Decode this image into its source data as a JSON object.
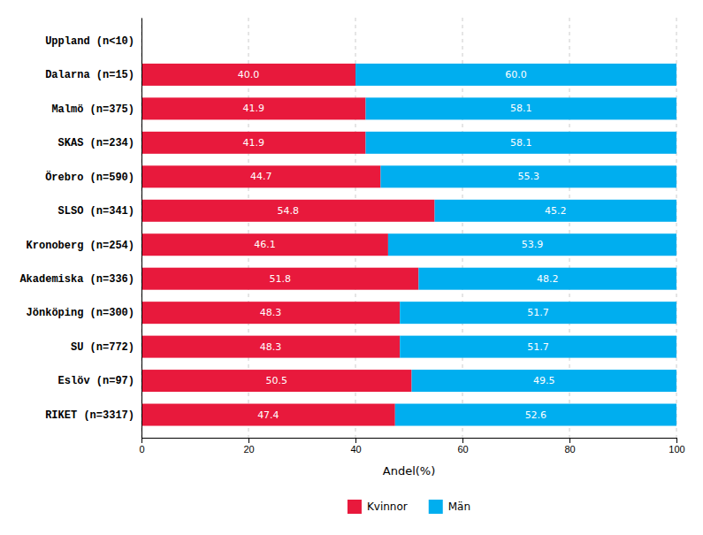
{
  "chart_data": {
    "type": "bar",
    "orientation": "horizontal",
    "stacked": true,
    "data_labels": true,
    "xlabel": "Andel(%)",
    "categories": [
      "Uppland (n<10)",
      "Dalarna (n=15)",
      "Malmö (n=375)",
      "SKAS (n=234)",
      "Örebro (n=590)",
      "SLSO (n=341)",
      "Kronoberg (n=254)",
      "Akademiska (n=336)",
      "Jönköping (n=300)",
      "SU (n=772)",
      "Eslöv (n=97)",
      "RIKET (n=3317)"
    ],
    "series": [
      {
        "name": "Kvinnor",
        "color": "#E8193C",
        "values": [
          null,
          40.0,
          41.9,
          41.9,
          44.7,
          54.8,
          46.1,
          51.8,
          48.3,
          48.3,
          50.5,
          47.4
        ],
        "value_labels": [
          null,
          "40.0",
          "41.9",
          "41.9",
          "44.7",
          "54.8",
          "46.1",
          "51.8",
          "48.3",
          "48.3",
          "50.5",
          "47.4"
        ]
      },
      {
        "name": "Män",
        "color": "#00AEEF",
        "values": [
          null,
          60.0,
          58.1,
          58.1,
          55.3,
          45.2,
          53.9,
          48.2,
          51.7,
          51.7,
          49.5,
          52.6
        ],
        "value_labels": [
          null,
          "60.0",
          "58.1",
          "58.1",
          "55.3",
          "45.2",
          "53.9",
          "48.2",
          "51.7",
          "51.7",
          "49.5",
          "52.6"
        ]
      }
    ],
    "xlim": [
      0,
      100
    ],
    "xticks": [
      0,
      20,
      40,
      60,
      80,
      100
    ],
    "grid": true,
    "legend": "bottom"
  }
}
